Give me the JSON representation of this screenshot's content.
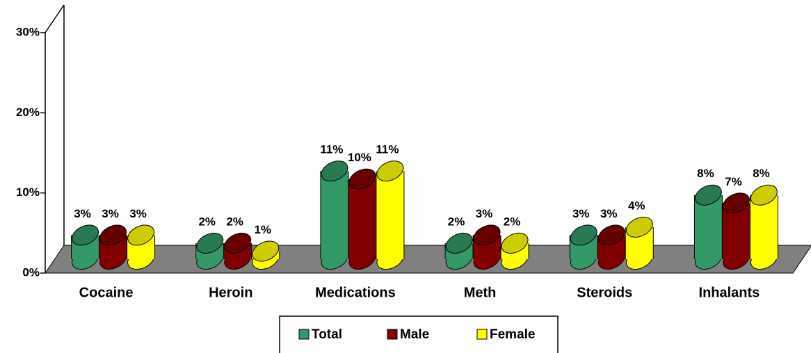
{
  "chart_data": {
    "type": "bar3d",
    "categories": [
      "Cocaine",
      "Heroin",
      "Medications",
      "Meth",
      "Steroids",
      "Inhalants"
    ],
    "series": [
      {
        "name": "Total",
        "color": "#339966",
        "values": [
          3,
          2,
          11,
          2,
          3,
          8
        ],
        "value_labels": [
          "3%",
          "2%",
          "11%",
          "2%",
          "3%",
          "8%"
        ]
      },
      {
        "name": "Male",
        "color": "#800000",
        "values": [
          3,
          2,
          10,
          3,
          3,
          7
        ],
        "value_labels": [
          "3%",
          "2%",
          "10%",
          "3%",
          "3%",
          "7%"
        ]
      },
      {
        "name": "Female",
        "color": "#ffff00",
        "values": [
          3,
          1,
          11,
          2,
          4,
          8
        ],
        "value_labels": [
          "3%",
          "1%",
          "11%",
          "2%",
          "4%",
          "8%"
        ]
      }
    ],
    "ylim": [
      0,
      30
    ],
    "yticks": [
      {
        "value": 0,
        "label": "0%"
      },
      {
        "value": 10,
        "label": "10%"
      },
      {
        "value": 20,
        "label": "20%"
      },
      {
        "value": 30,
        "label": "30%"
      }
    ],
    "floor_color": "#808080"
  }
}
